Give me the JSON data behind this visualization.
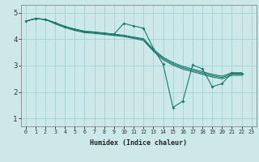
{
  "xlabel": "Humidex (Indice chaleur)",
  "bg_color": "#cce8e8",
  "grid_color": "#a0cccc",
  "line_color": "#1a7a6e",
  "xlim": [
    -0.5,
    23.5
  ],
  "ylim": [
    0.7,
    5.3
  ],
  "yticks": [
    1,
    2,
    3,
    4,
    5
  ],
  "xticks": [
    0,
    1,
    2,
    3,
    4,
    5,
    6,
    7,
    8,
    9,
    10,
    11,
    12,
    13,
    14,
    15,
    16,
    17,
    18,
    19,
    20,
    21,
    22,
    23
  ],
  "line1_x": [
    0,
    1,
    2,
    3,
    4,
    5,
    6,
    7,
    8,
    9,
    10,
    11,
    12,
    13,
    14,
    15,
    16,
    17,
    18,
    19,
    20,
    21,
    22
  ],
  "line1_y": [
    4.68,
    4.78,
    4.75,
    4.62,
    4.48,
    4.38,
    4.3,
    4.27,
    4.23,
    4.19,
    4.6,
    4.5,
    4.42,
    3.65,
    3.05,
    1.42,
    1.65,
    3.02,
    2.88,
    2.2,
    2.32,
    2.72,
    2.7
  ],
  "line2_x": [
    0,
    1,
    2,
    3,
    4,
    5,
    6,
    7,
    8,
    9,
    10,
    11,
    12,
    13,
    14,
    15,
    16,
    17,
    18,
    19,
    20,
    21,
    22
  ],
  "line2_y": [
    4.68,
    4.78,
    4.75,
    4.62,
    4.48,
    4.38,
    4.3,
    4.27,
    4.23,
    4.19,
    4.15,
    4.08,
    4.02,
    3.62,
    3.32,
    3.12,
    2.97,
    2.87,
    2.77,
    2.67,
    2.6,
    2.73,
    2.73
  ],
  "line3_x": [
    0,
    1,
    2,
    3,
    4,
    5,
    6,
    7,
    8,
    9,
    10,
    11,
    12,
    13,
    14,
    15,
    16,
    17,
    18,
    19,
    20,
    21,
    22
  ],
  "line3_y": [
    4.68,
    4.78,
    4.75,
    4.62,
    4.48,
    4.36,
    4.28,
    4.25,
    4.21,
    4.17,
    4.13,
    4.06,
    3.99,
    3.58,
    3.27,
    3.07,
    2.92,
    2.82,
    2.72,
    2.62,
    2.55,
    2.68,
    2.68
  ],
  "line4_x": [
    0,
    1,
    2,
    3,
    4,
    5,
    6,
    7,
    8,
    9,
    10,
    11,
    12,
    13,
    14,
    15,
    16,
    17,
    18,
    19,
    20,
    21,
    22
  ],
  "line4_y": [
    4.68,
    4.78,
    4.75,
    4.58,
    4.44,
    4.33,
    4.25,
    4.22,
    4.18,
    4.14,
    4.1,
    4.03,
    3.95,
    3.55,
    3.22,
    3.02,
    2.87,
    2.77,
    2.67,
    2.57,
    2.5,
    2.63,
    2.63
  ]
}
